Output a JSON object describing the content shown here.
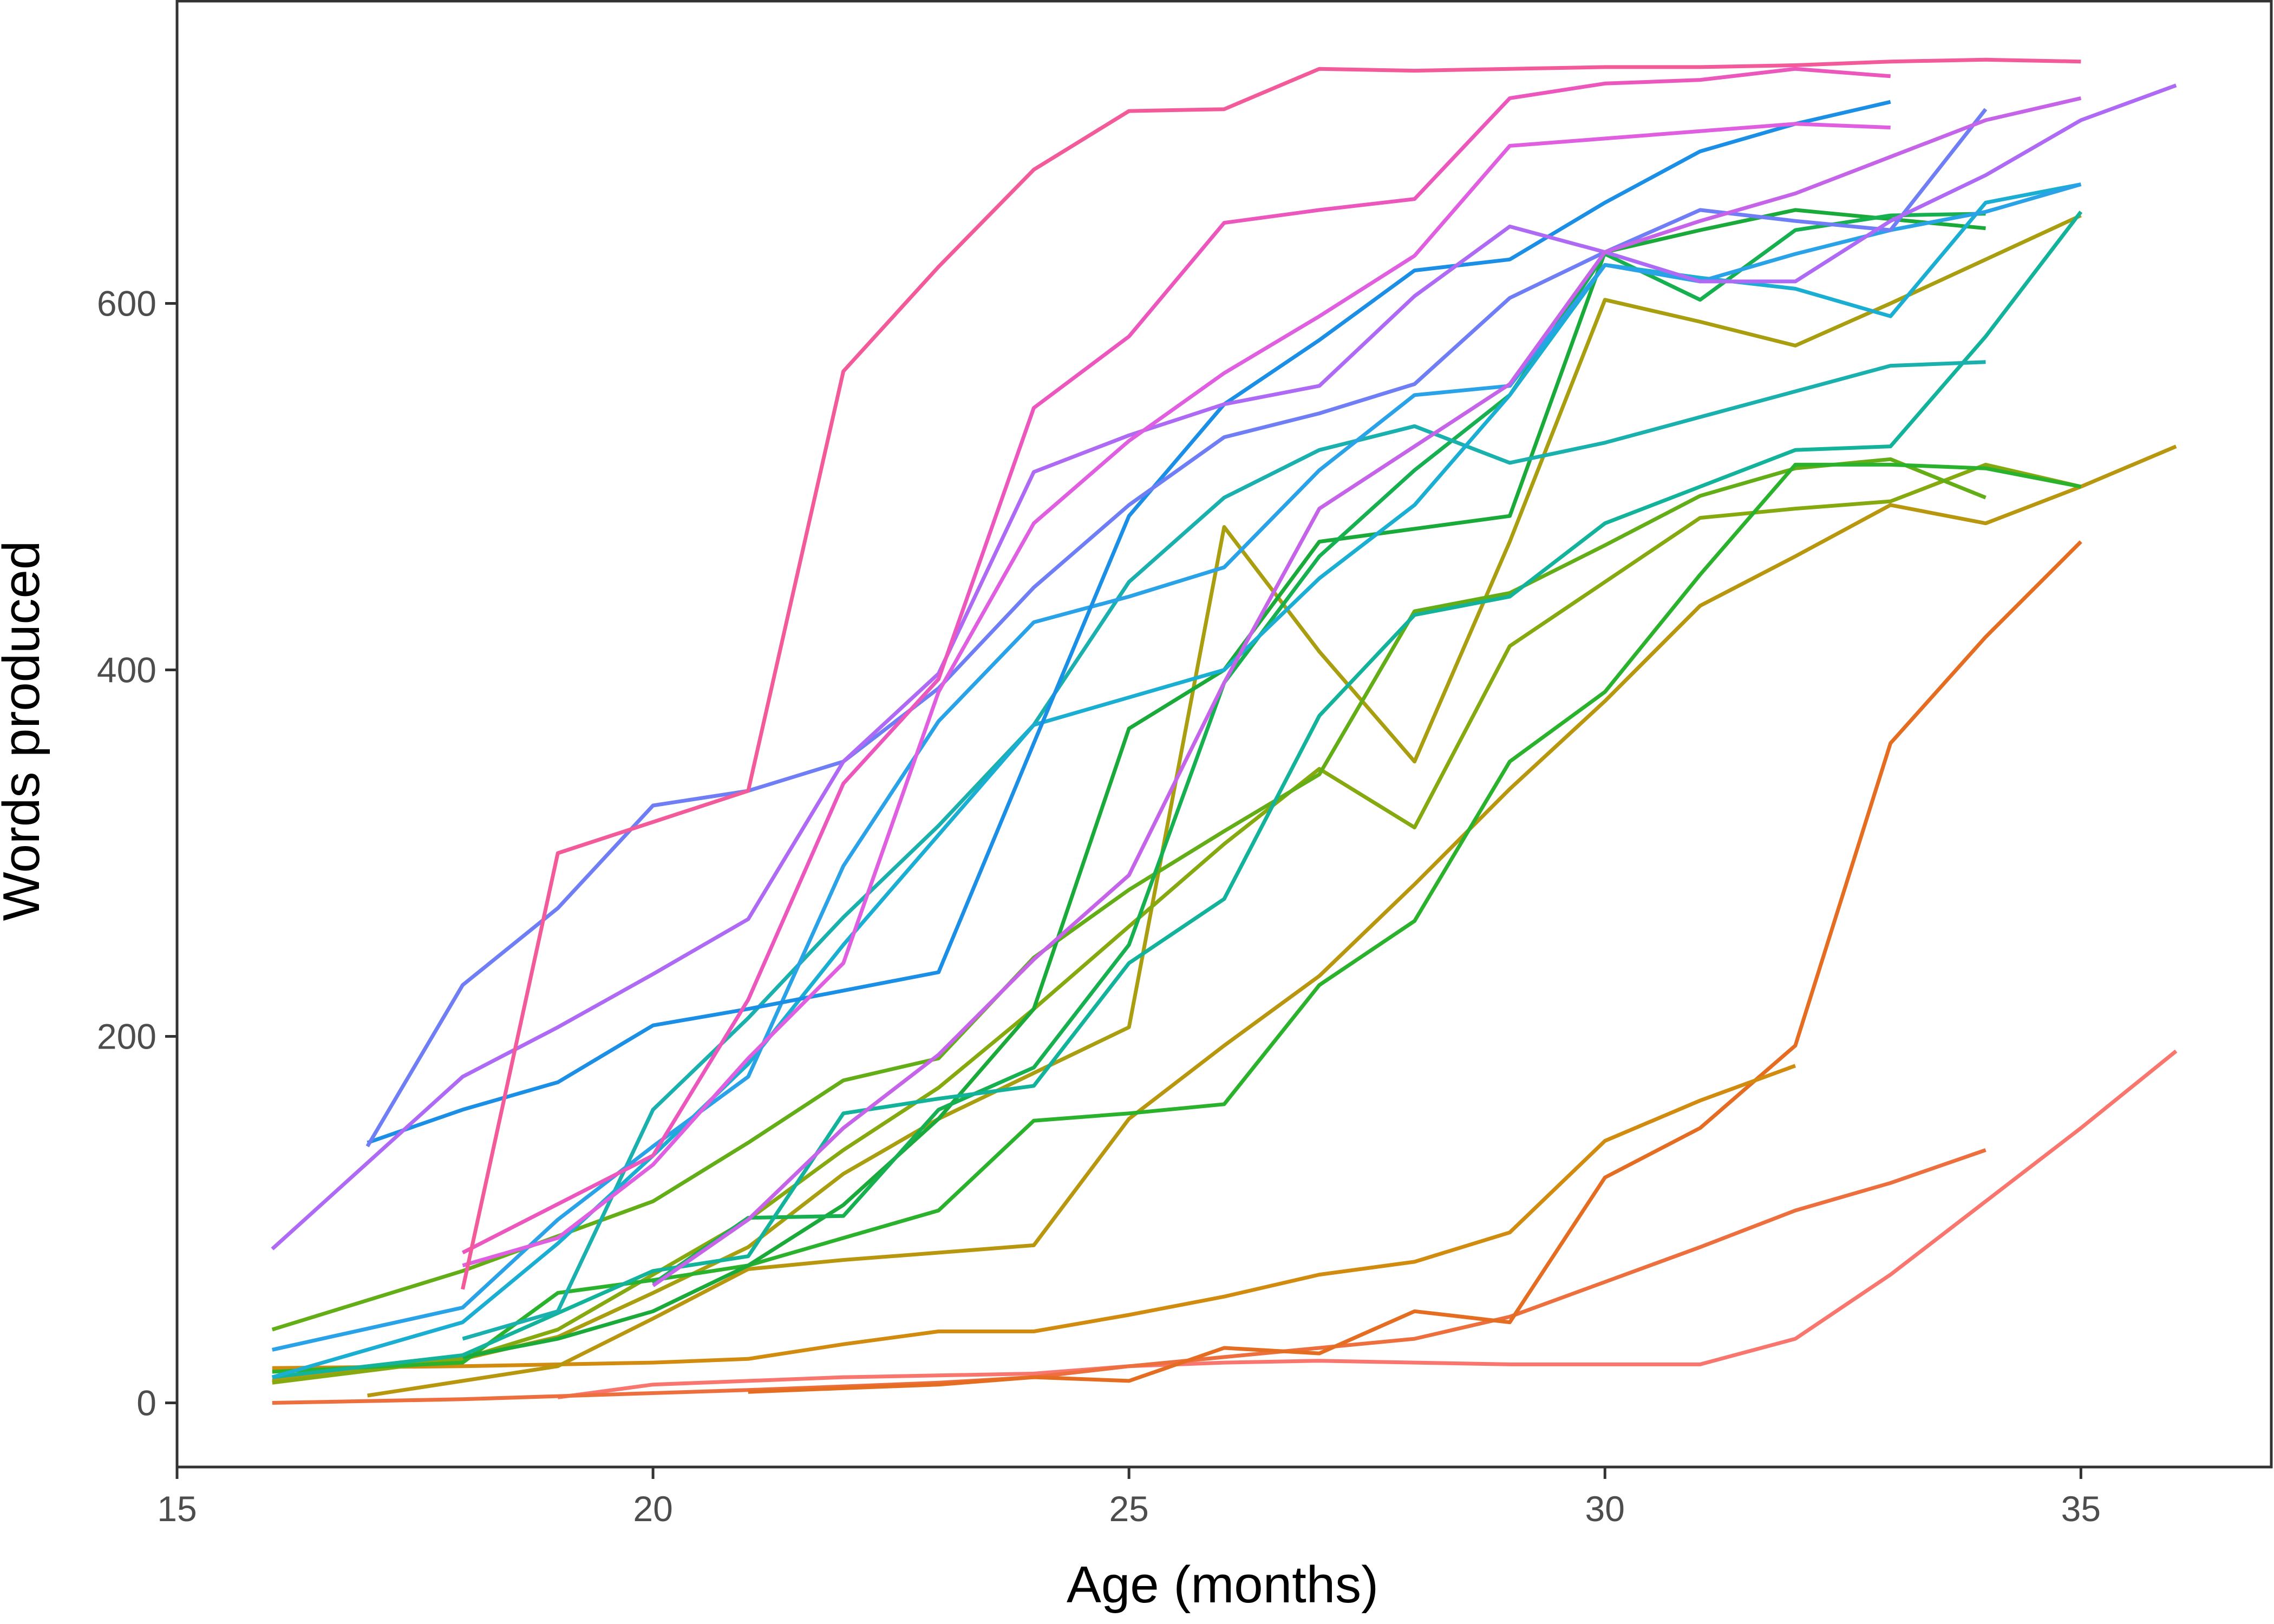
{
  "chart_data": {
    "type": "line",
    "title": "",
    "xlabel": "Age (months)",
    "ylabel": "Words produced",
    "xlim": [
      15,
      37
    ],
    "ylim": [
      -35,
      765
    ],
    "xticks": [
      15,
      20,
      25,
      30,
      35
    ],
    "yticks": [
      0,
      200,
      400,
      600
    ],
    "grid": false,
    "legend": "none",
    "series": [
      {
        "color": "#f8766d",
        "x": [
          19,
          20,
          21,
          22,
          23,
          24,
          25,
          26,
          27,
          28,
          29,
          30,
          31,
          32,
          33,
          34,
          35,
          36
        ],
        "y": [
          3,
          10,
          12,
          14,
          15,
          16,
          20,
          22,
          23,
          22,
          21,
          21,
          21,
          35,
          70,
          110,
          150,
          192
        ]
      },
      {
        "color": "#ec6f3d",
        "x": [
          16,
          18,
          21,
          22,
          23,
          24,
          25,
          26,
          27,
          28,
          29,
          30,
          31,
          32,
          33,
          34
        ],
        "y": [
          0,
          2,
          7,
          9,
          11,
          14,
          20,
          25,
          30,
          35,
          47,
          66,
          85,
          105,
          120,
          138
        ]
      },
      {
        "color": "#e46d21",
        "x": [
          21,
          22,
          23,
          24,
          25,
          26,
          27,
          28,
          29,
          30,
          31,
          32,
          33,
          34,
          35
        ],
        "y": [
          6,
          8,
          10,
          14,
          12,
          30,
          27,
          50,
          44,
          123,
          150,
          195,
          360,
          418,
          470
        ]
      },
      {
        "color": "#d18b0e",
        "x": [
          16,
          18,
          20,
          21,
          22,
          23,
          24,
          25,
          26,
          27,
          28,
          29,
          30,
          31,
          32
        ],
        "y": [
          19,
          20,
          22,
          24,
          32,
          39,
          39,
          48,
          58,
          70,
          77,
          93,
          143,
          165,
          184
        ]
      },
      {
        "color": "#b8970f",
        "x": [
          17,
          19,
          20,
          21,
          22,
          23,
          24,
          25,
          26,
          27,
          28,
          29,
          30,
          31,
          32,
          33,
          34,
          35,
          36
        ],
        "y": [
          4,
          20,
          46,
          73,
          78,
          82,
          86,
          155,
          195,
          233,
          283,
          335,
          383,
          435,
          462,
          490,
          480,
          500,
          522
        ]
      },
      {
        "color": "#a89e0f",
        "x": [
          16,
          18,
          19,
          20,
          21,
          22,
          23,
          24,
          25,
          26,
          27,
          28,
          29,
          30,
          31,
          32,
          33,
          34,
          35
        ],
        "y": [
          12,
          24,
          36,
          60,
          85,
          125,
          155,
          180,
          205,
          478,
          410,
          350,
          470,
          602,
          590,
          577,
          600,
          624,
          648
        ]
      },
      {
        "color": "#86a90f",
        "x": [
          16,
          18,
          19,
          20,
          21,
          22,
          23,
          24,
          25,
          26,
          27,
          28,
          29,
          30,
          31,
          32,
          33,
          34,
          35
        ],
        "y": [
          11,
          24,
          40,
          70,
          100,
          138,
          172,
          215,
          260,
          305,
          346,
          314,
          413,
          448,
          483,
          488,
          492,
          512,
          500
        ]
      },
      {
        "color": "#63ad16",
        "x": [
          16,
          18,
          20,
          21,
          22,
          23,
          24,
          25,
          26,
          27,
          28,
          29,
          30,
          31,
          32,
          33,
          34
        ],
        "y": [
          40,
          72,
          110,
          142,
          176,
          188,
          243,
          280,
          312,
          343,
          432,
          442,
          468,
          495,
          510,
          515,
          494
        ]
      },
      {
        "color": "#2bb22d",
        "x": [
          16,
          18,
          19,
          20,
          21,
          22,
          23,
          24,
          25,
          26,
          27,
          28,
          29,
          30,
          31,
          32,
          33,
          34,
          35
        ],
        "y": [
          17,
          22,
          60,
          67,
          75,
          90,
          105,
          154,
          158,
          163,
          228,
          263,
          350,
          388,
          452,
          512,
          512,
          510,
          500
        ]
      },
      {
        "color": "#1aaa3a",
        "x": [
          18,
          19,
          20,
          21,
          22,
          23,
          24,
          25,
          26,
          27,
          28,
          29,
          30,
          31,
          32,
          33,
          34
        ],
        "y": [
          25,
          35,
          50,
          75,
          108,
          155,
          215,
          368,
          400,
          470,
          477,
          484,
          628,
          640,
          651,
          646,
          641
        ]
      },
      {
        "color": "#16b050",
        "x": [
          20,
          21,
          22,
          23,
          24,
          25,
          26,
          27,
          28,
          29,
          30,
          31,
          32,
          33,
          34
        ],
        "y": [
          65,
          101,
          102,
          160,
          183,
          250,
          393,
          462,
          509,
          550,
          627,
          602,
          640,
          648,
          649
        ]
      },
      {
        "color": "#13b39b",
        "x": [
          16,
          18,
          20,
          21,
          22,
          23,
          24,
          25,
          26,
          27,
          28,
          29,
          30,
          31,
          32,
          33,
          34,
          35
        ],
        "y": [
          14,
          26,
          72,
          80,
          158,
          166,
          173,
          240,
          275,
          375,
          430,
          440,
          480,
          500,
          520,
          522,
          582,
          650
        ]
      },
      {
        "color": "#19b0ad",
        "x": [
          18,
          19,
          20,
          21,
          22,
          23,
          24,
          25,
          26,
          27,
          28,
          29,
          30,
          31,
          32,
          33,
          34
        ],
        "y": [
          35,
          50,
          160,
          210,
          265,
          315,
          370,
          448,
          494,
          520,
          533,
          513,
          524,
          538,
          552,
          566,
          568
        ]
      },
      {
        "color": "#1aaed3",
        "x": [
          16,
          18,
          19,
          20,
          21,
          22,
          23,
          24,
          25,
          26,
          27,
          28,
          29,
          30,
          31,
          32,
          33,
          34,
          35
        ],
        "y": [
          14,
          44,
          87,
          135,
          185,
          250,
          310,
          370,
          385,
          400,
          450,
          490,
          550,
          621,
          614,
          608,
          593,
          655,
          665
        ]
      },
      {
        "color": "#2aa2e8",
        "x": [
          16,
          18,
          19,
          20,
          21,
          22,
          23,
          24,
          25,
          26,
          27,
          28,
          29,
          30,
          31,
          32,
          33,
          34,
          35
        ],
        "y": [
          29,
          52,
          100,
          140,
          178,
          293,
          372,
          426,
          440,
          456,
          509,
          550,
          555,
          621,
          612,
          627,
          640,
          650,
          665
        ]
      },
      {
        "color": "#1b8fe6",
        "x": [
          17,
          18,
          19,
          20,
          21,
          22,
          23,
          24,
          25,
          26,
          27,
          28,
          29,
          30,
          31,
          32,
          33
        ],
        "y": [
          142,
          160,
          175,
          206,
          215,
          225,
          235,
          360,
          484,
          545,
          580,
          618,
          624,
          655,
          683,
          698,
          710
        ]
      },
      {
        "color": "#6f7ef5",
        "x": [
          17,
          18,
          19,
          20,
          21,
          22,
          23,
          24,
          25,
          26,
          27,
          28,
          29,
          30,
          31,
          32,
          33,
          34
        ],
        "y": [
          140,
          228,
          270,
          326,
          334,
          350,
          390,
          445,
          490,
          527,
          540,
          556,
          603,
          628,
          651,
          645,
          640,
          706
        ]
      },
      {
        "color": "#ae6af4",
        "x": [
          16,
          18,
          19,
          20,
          21,
          22,
          23,
          24,
          25,
          26,
          27,
          28,
          29,
          30,
          31,
          32,
          33,
          34,
          35,
          36
        ],
        "y": [
          84,
          178,
          205,
          234,
          264,
          350,
          398,
          508,
          528,
          545,
          555,
          604,
          642,
          628,
          612,
          612,
          645,
          670,
          700,
          719
        ]
      },
      {
        "color": "#c564e8",
        "x": [
          20,
          21,
          22,
          23,
          24,
          25,
          26,
          27,
          28,
          29,
          30,
          31,
          32,
          33,
          34,
          35
        ],
        "y": [
          64,
          100,
          150,
          190,
          242,
          288,
          393,
          488,
          522,
          556,
          628,
          645,
          660,
          680,
          700,
          712
        ]
      },
      {
        "color": "#e05fe0",
        "x": [
          18,
          19,
          20,
          21,
          22,
          23,
          24,
          25,
          26,
          27,
          28,
          29,
          30,
          31,
          32,
          33
        ],
        "y": [
          75,
          90,
          130,
          188,
          240,
          388,
          480,
          525,
          562,
          593,
          626,
          686,
          690,
          694,
          698,
          696
        ]
      },
      {
        "color": "#ec57bd",
        "x": [
          18,
          20,
          21,
          22,
          23,
          24,
          25,
          26,
          27,
          28,
          29,
          30,
          31,
          32,
          33
        ],
        "y": [
          82,
          135,
          220,
          338,
          395,
          543,
          582,
          644,
          651,
          657,
          712,
          720,
          722,
          728,
          724
        ]
      },
      {
        "color": "#f25a9a",
        "x": [
          18,
          19,
          20,
          21,
          22,
          23,
          24,
          25,
          26,
          27,
          28,
          29,
          30,
          31,
          32,
          33,
          34,
          35
        ],
        "y": [
          62,
          300,
          317,
          334,
          563,
          620,
          673,
          705,
          706,
          728,
          727,
          728,
          729,
          729,
          730,
          732,
          733,
          732
        ]
      }
    ]
  }
}
